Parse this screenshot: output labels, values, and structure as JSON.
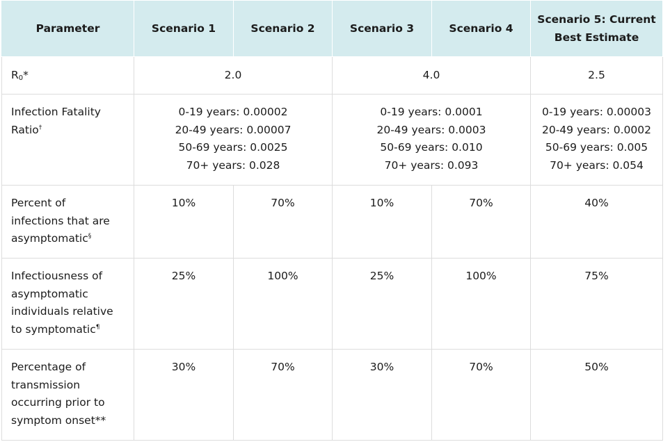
{
  "header": {
    "parameter": "Parameter",
    "scenario1": "Scenario 1",
    "scenario2": "Scenario 2",
    "scenario3": "Scenario 3",
    "scenario4": "Scenario 4",
    "scenario5_line1": "Scenario 5: Current",
    "scenario5_line2": "Best Estimate"
  },
  "rows": {
    "r0": {
      "label_main": "R",
      "label_sub": "0",
      "label_mark": "*",
      "s12": "2.0",
      "s34": "4.0",
      "s5": "2.5"
    },
    "ifr": {
      "label_line1": "Infection Fatality",
      "label_line2": "Ratio",
      "label_mark": "†",
      "s12": [
        "0-19 years: 0.00002",
        "20-49 years: 0.00007",
        "50-69 years: 0.0025",
        "70+ years: 0.028"
      ],
      "s34": [
        "0-19 years: 0.0001",
        "20-49 years: 0.0003",
        "50-69 years: 0.010",
        "70+ years: 0.093"
      ],
      "s5": [
        "0-19 years: 0.00003",
        "20-49 years: 0.0002",
        "50-69 years: 0.005",
        "70+ years: 0.054"
      ]
    },
    "asymptomatic_pct": {
      "label_line1": "Percent of",
      "label_line2": "infections that are",
      "label_line3": "asymptomatic",
      "label_mark": "§",
      "s1": "10%",
      "s2": "70%",
      "s3": "10%",
      "s4": "70%",
      "s5": "40%"
    },
    "infectiousness": {
      "label_line1": "Infectiousness of",
      "label_line2": "asymptomatic",
      "label_line3": "individuals relative",
      "label_line4": "to symptomatic",
      "label_mark": "¶",
      "s1": "25%",
      "s2": "100%",
      "s3": "25%",
      "s4": "100%",
      "s5": "75%"
    },
    "presymptomatic": {
      "label_line1": "Percentage of",
      "label_line2": "transmission",
      "label_line3": "occurring prior to",
      "label_line4": "symptom onset**",
      "s1": "30%",
      "s2": "70%",
      "s3": "30%",
      "s4": "70%",
      "s5": "50%"
    }
  }
}
